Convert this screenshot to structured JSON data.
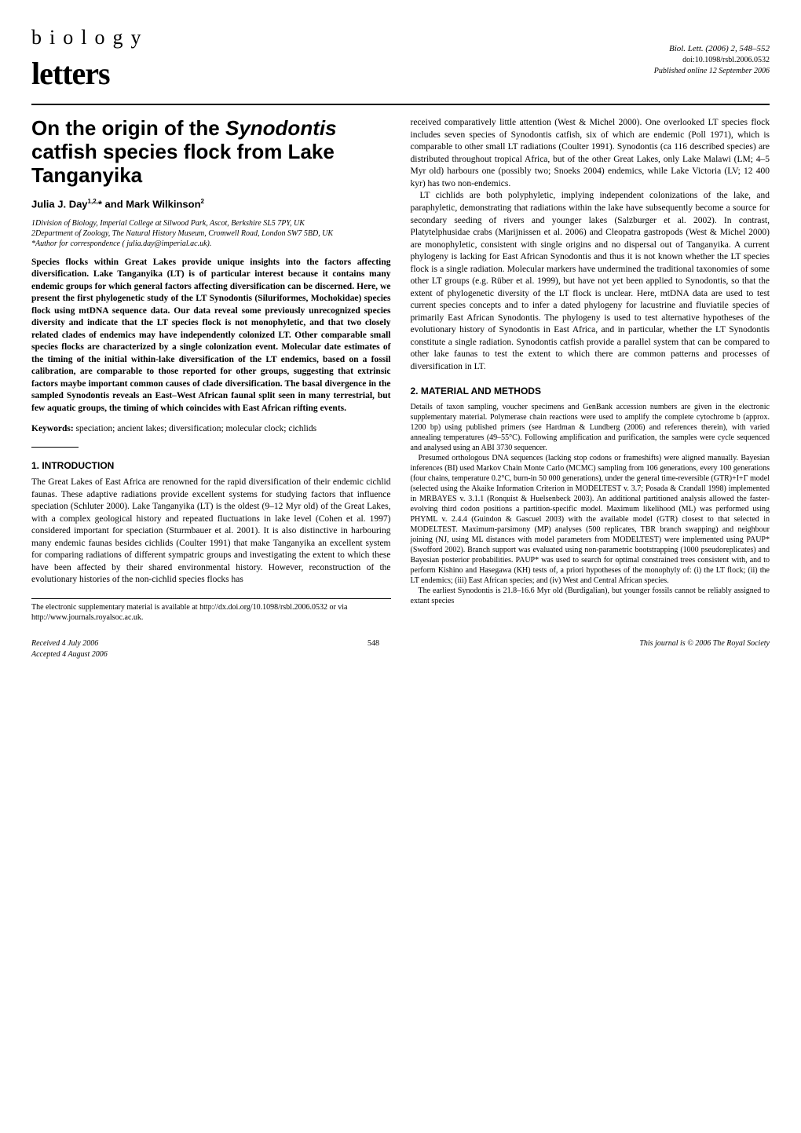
{
  "journal": {
    "name_top": "biology",
    "name_bottom": "letters",
    "citation": "Biol. Lett. (2006) 2, 548–552",
    "doi": "doi:10.1098/rsbl.2006.0532",
    "pub_date": "Published online 12 September 2006"
  },
  "article": {
    "title": "On the origin of the Synodontis catfish species flock from Lake Tanganyika",
    "authors": "Julia J. Day1,2,* and Mark Wilkinson2",
    "affil1": "1Division of Biology, Imperial College at Silwood Park, Ascot, Berkshire SL5 7PY, UK",
    "affil2": "2Department of Zoology, The Natural History Museum, Cromwell Road, London SW7 5BD, UK",
    "corresp": "*Author for correspondence ( julia.day@imperial.ac.uk).",
    "abstract": "Species flocks within Great Lakes provide unique insights into the factors affecting diversification. Lake Tanganyika (LT) is of particular interest because it contains many endemic groups for which general factors affecting diversification can be discerned. Here, we present the first phylogenetic study of the LT Synodontis (Siluriformes, Mochokidae) species flock using mtDNA sequence data. Our data reveal some previously unrecognized species diversity and indicate that the LT species flock is not monophyletic, and that two closely related clades of endemics may have independently colonized LT. Other comparable small species flocks are characterized by a single colonization event. Molecular date estimates of the timing of the initial within-lake diversification of the LT endemics, based on a fossil calibration, are comparable to those reported for other groups, suggesting that extrinsic factors maybe important common causes of clade diversification. The basal divergence in the sampled Synodontis reveals an East–West African faunal split seen in many terrestrial, but few aquatic groups, the timing of which coincides with East African rifting events.",
    "keywords_label": "Keywords:",
    "keywords": "speciation; ancient lakes; diversification; molecular clock; cichlids"
  },
  "sections": {
    "intro_heading": "1. INTRODUCTION",
    "intro_p1": "The Great Lakes of East Africa are renowned for the rapid diversification of their endemic cichlid faunas. These adaptive radiations provide excellent systems for studying factors that influence speciation (Schluter 2000). Lake Tanganyika (LT) is the oldest (9–12 Myr old) of the Great Lakes, with a complex geological history and repeated fluctuations in lake level (Cohen et al. 1997) considered important for speciation (Sturmbauer et al. 2001). It is also distinctive in harbouring many endemic faunas besides cichlids (Coulter 1991) that make Tanganyika an excellent system for comparing radiations of different sympatric groups and investigating the extent to which these have been affected by their shared environmental history. However, reconstruction of the evolutionary histories of the non-cichlid species flocks has",
    "col2_p1": "received comparatively little attention (West & Michel 2000). One overlooked LT species flock includes seven species of Synodontis catfish, six of which are endemic (Poll 1971), which is comparable to other small LT radiations (Coulter 1991). Synodontis (ca 116 described species) are distributed throughout tropical Africa, but of the other Great Lakes, only Lake Malawi (LM; 4–5 Myr old) harbours one (possibly two; Snoeks 2004) endemics, while Lake Victoria (LV; 12 400 kyr) has two non-endemics.",
    "col2_p2": "LT cichlids are both polyphyletic, implying independent colonizations of the lake, and paraphyletic, demonstrating that radiations within the lake have subsequently become a source for secondary seeding of rivers and younger lakes (Salzburger et al. 2002). In contrast, Platytelphusidae crabs (Marijnissen et al. 2006) and Cleopatra gastropods (West & Michel 2000) are monophyletic, consistent with single origins and no dispersal out of Tanganyika. A current phylogeny is lacking for East African Synodontis and thus it is not known whether the LT species flock is a single radiation. Molecular markers have undermined the traditional taxonomies of some other LT groups (e.g. Rüber et al. 1999), but have not yet been applied to Synodontis, so that the extent of phylogenetic diversity of the LT flock is unclear. Here, mtDNA data are used to test current species concepts and to infer a dated phylogeny for lacustrine and fluviatile species of primarily East African Synodontis. The phylogeny is used to test alternative hypotheses of the evolutionary history of Synodontis in East Africa, and in particular, whether the LT Synodontis constitute a single radiation. Synodontis catfish provide a parallel system that can be compared to other lake faunas to test the extent to which there are common patterns and processes of diversification in LT.",
    "methods_heading": "2. MATERIAL AND METHODS",
    "methods_p1": "Details of taxon sampling, voucher specimens and GenBank accession numbers are given in the electronic supplementary material. Polymerase chain reactions were used to amplify the complete cytochrome b (approx. 1200 bp) using published primers (see Hardman & Lundberg (2006) and references therein), with varied annealing temperatures (49–55°C). Following amplification and purification, the samples were cycle sequenced and analysed using an ABI 3730 sequencer.",
    "methods_p2": "Presumed orthologous DNA sequences (lacking stop codons or frameshifts) were aligned manually. Bayesian inferences (BI) used Markov Chain Monte Carlo (MCMC) sampling from 106 generations, every 100 generations (four chains, temperature 0.2°C, burn-in 50 000 generations), under the general time-reversible (GTR)+I+Γ model (selected using the Akaike Information Criterion in MODELTEST v. 3.7; Posada & Crandall 1998) implemented in MRBAYES v. 3.1.1 (Ronquist & Huelsenbeck 2003). An additional partitioned analysis allowed the faster-evolving third codon positions a partition-specific model. Maximum likelihood (ML) was performed using PHYML v. 2.4.4 (Guindon & Gascuel 2003) with the available model (GTR) closest to that selected in MODELTEST. Maximum-parsimony (MP) analyses (500 replicates, TBR branch swapping) and neighbour joining (NJ, using ML distances with model parameters from MODELTEST) were implemented using PAUP* (Swofford 2002). Branch support was evaluated using non-parametric bootstrapping (1000 pseudoreplicates) and Bayesian posterior probabilities. PAUP* was used to search for optimal constrained trees consistent with, and to perform Kishino and Hasegawa (KH) tests of, a priori hypotheses of the monophyly of: (i) the LT flock; (ii) the LT endemics; (iii) East African species; and (iv) West and Central African species.",
    "methods_p3": "The earliest Synodontis is 21.8–16.6 Myr old (Burdigalian), but younger fossils cannot be reliably assigned to extant species"
  },
  "supp": {
    "note": "The electronic supplementary material is available at http://dx.doi.org/10.1098/rsbl.2006.0532 or via http://www.journals.royalsoc.ac.uk."
  },
  "footer": {
    "received": "Received 4 July 2006",
    "accepted": "Accepted 4 August 2006",
    "page": "548",
    "copyright": "This journal is © 2006 The Royal Society"
  },
  "colors": {
    "link": "#0066cc",
    "text": "#000000",
    "background": "#ffffff"
  },
  "typography": {
    "body_font": "Georgia, Times New Roman, serif",
    "heading_font": "Arial, Helvetica, sans-serif",
    "body_size_pt": 11.5,
    "methods_size_pt": 10,
    "title_size_pt": 26
  }
}
